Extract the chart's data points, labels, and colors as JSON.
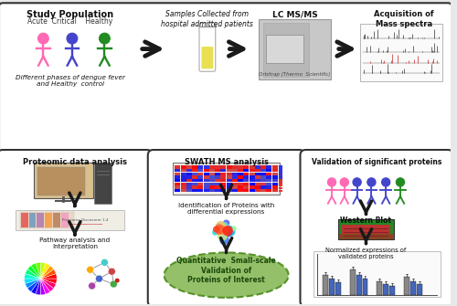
{
  "bg_color": "#e8e8e8",
  "top_panel_bg": "#ffffff",
  "bottom_panel_bg": "#ffffff",
  "panel_border_color": "#333333",
  "title_top": "Study Population",
  "subtitle_top": "Acute  Critical    Healthy",
  "label_bottom_left": "Different phases of dengue fever\nand Healthy  control",
  "label_tube": "Samples Collected from\nhospital admitted patients",
  "label_lc": "LC MS/MS",
  "label_orbitrap": "Orbitrap (Thermo  Scientific)",
  "label_acq": "Acquisition of\nMass spectra",
  "panel1_title": "Proteomic data analysis",
  "panel1_sub1": "Pathway analysis and\nInterpretation",
  "panel2_title": "SWATH MS analysis",
  "panel2_sub1": "Identification of Proteins with\ndifferential expressions",
  "panel2_sub2": "Quantitative  Small-scale\nValidation of\nProteins of Interest",
  "panel3_title": "Validation of significant proteins",
  "panel3_sub1": "Western Blot",
  "panel3_sub2": "Normalized expressions of\nvalidated proteins",
  "person_colors_top": [
    "#ff69b4",
    "#4444cc",
    "#228b22"
  ],
  "person_colors_p3": [
    "#ff69b4",
    "#ff69b4",
    "#4444cc",
    "#4444cc",
    "#4444cc",
    "#228b22"
  ],
  "green_ellipse_color": "#8aba5a",
  "green_ellipse_edge": "#4a8a1a",
  "green_text_color": "#1a4a0a",
  "arrow_dark": "#1a1a1a",
  "bar_colors": [
    "#4466aa",
    "#666666",
    "#4466aa",
    "#888888",
    "#4466aa",
    "#666666",
    "#4466aa",
    "#888888"
  ]
}
